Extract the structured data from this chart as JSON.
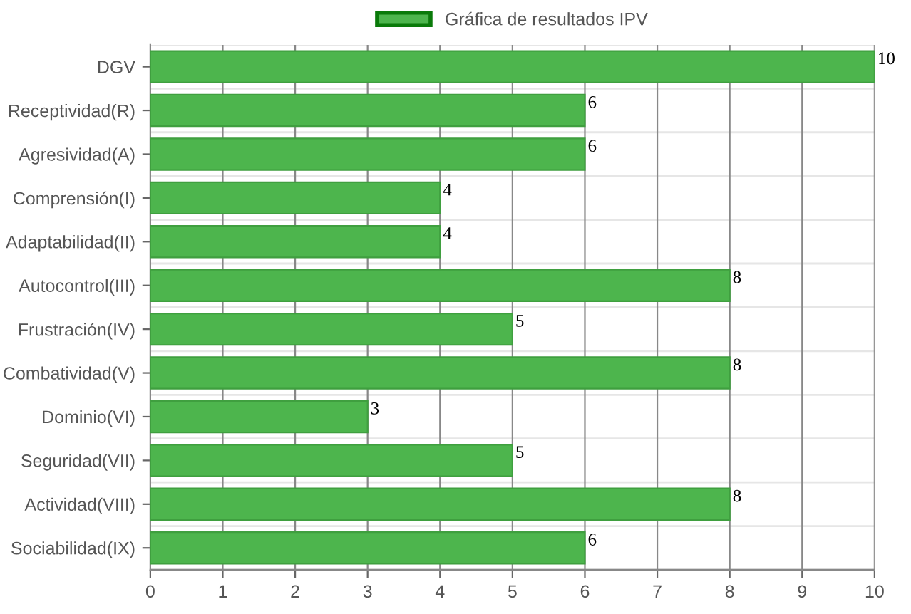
{
  "chart_data": {
    "type": "bar",
    "orientation": "horizontal",
    "categories": [
      "DGV",
      "Receptividad(R)",
      "Agresividad(A)",
      "Comprensión(I)",
      "Adaptabilidad(II)",
      "Autocontrol(III)",
      "Frustración(IV)",
      "Combatividad(V)",
      "Dominio(VI)",
      "Seguridad(VII)",
      "Actividad(VIII)",
      "Sociabilidad(IX)"
    ],
    "series": [
      {
        "name": "Gráfica de resultados IPV",
        "color": "#4db54d",
        "values": [
          10,
          6,
          6,
          4,
          4,
          8,
          5,
          8,
          3,
          5,
          8,
          6
        ]
      }
    ],
    "xlim": [
      0,
      10
    ],
    "xticks": [
      0,
      1,
      2,
      3,
      4,
      5,
      6,
      7,
      8,
      9,
      10
    ],
    "grid": true,
    "legend": "top",
    "data_labels": true
  }
}
